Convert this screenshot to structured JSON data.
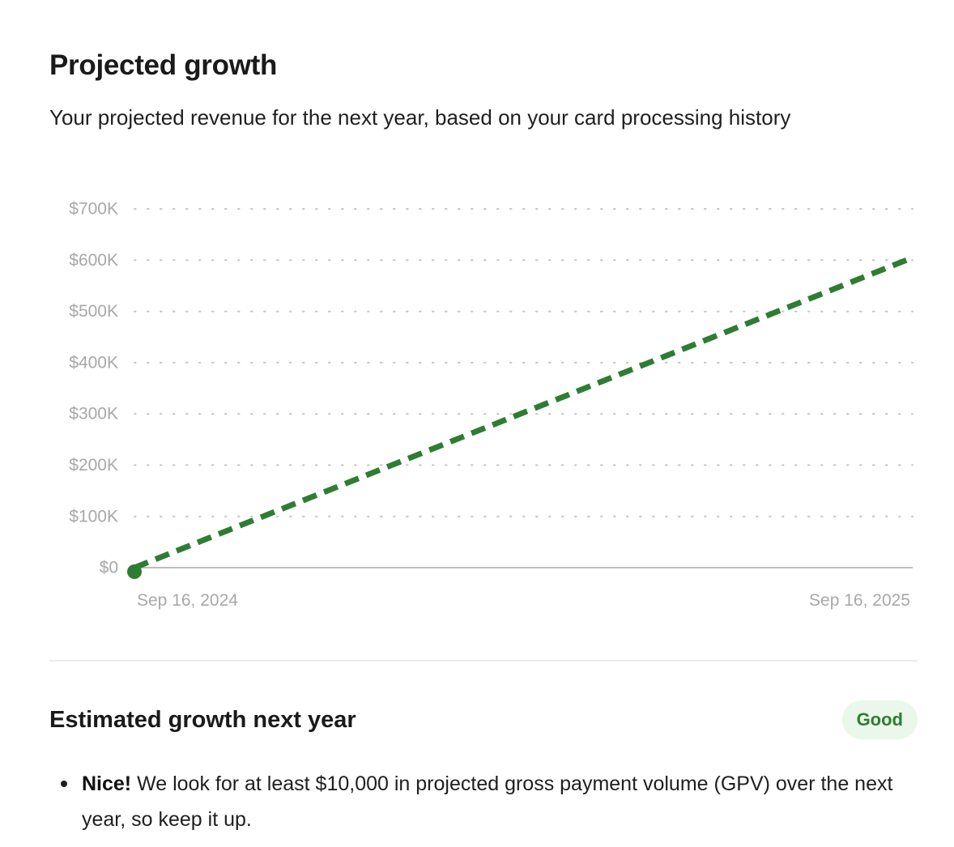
{
  "header": {
    "title": "Projected growth",
    "subtitle": "Your projected revenue for the next year, based on your card processing history"
  },
  "chart_data": {
    "type": "line",
    "x": [
      "2024-09-16",
      "2025-09-16"
    ],
    "x_tick_labels": [
      "Sep 16, 2024",
      "Sep 16, 2025"
    ],
    "y_ticks": [
      0,
      100000,
      200000,
      300000,
      400000,
      500000,
      600000,
      700000
    ],
    "y_tick_labels": [
      "$0",
      "$100K",
      "$200K",
      "$300K",
      "$400K",
      "$500K",
      "$600K",
      "$700K"
    ],
    "ylim": [
      0,
      700000
    ],
    "grid": "dotted",
    "series": [
      {
        "style": "dashed",
        "color": "#2e7d32",
        "values": [
          0,
          605000
        ],
        "start_marker": true
      }
    ]
  },
  "summary": {
    "title": "Estimated growth next year",
    "badge": "Good",
    "bullets": [
      {
        "strong": "Nice!",
        "text": " We look for at least $10,000 in projected gross payment volume (GPV) over the next year, so keep it up."
      }
    ]
  },
  "colors": {
    "accent": "#2e7d32",
    "badge_bg": "#eaf7ea",
    "axis": "#bdbdbd",
    "tick_text": "#a8a8a8",
    "grid_dot": "#c4c4c4"
  }
}
